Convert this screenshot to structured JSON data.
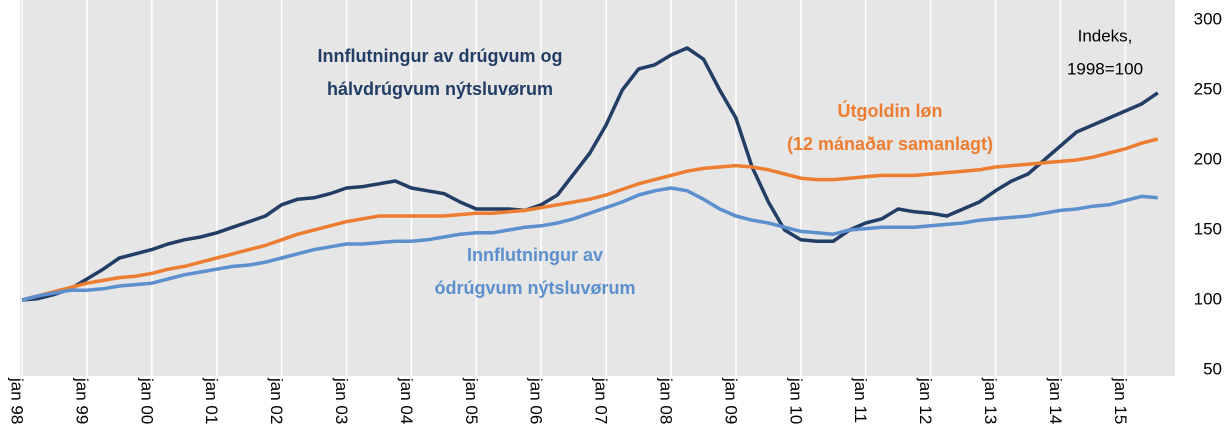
{
  "chart_data": {
    "type": "line",
    "x": [
      1998,
      1998.25,
      1998.5,
      1998.75,
      1999,
      1999.25,
      1999.5,
      1999.75,
      2000,
      2000.25,
      2000.5,
      2000.75,
      2001,
      2001.25,
      2001.5,
      2001.75,
      2002,
      2002.25,
      2002.5,
      2002.75,
      2003,
      2003.25,
      2003.5,
      2003.75,
      2004,
      2004.25,
      2004.5,
      2004.75,
      2005,
      2005.25,
      2005.5,
      2005.75,
      2006,
      2006.25,
      2006.5,
      2006.75,
      2007,
      2007.25,
      2007.5,
      2007.75,
      2008,
      2008.25,
      2008.5,
      2008.75,
      2009,
      2009.25,
      2009.5,
      2009.75,
      2010,
      2010.25,
      2010.5,
      2010.75,
      2011,
      2011.25,
      2011.5,
      2011.75,
      2012,
      2012.25,
      2012.5,
      2012.75,
      2013,
      2013.25,
      2013.5,
      2013.75,
      2014,
      2014.25,
      2014.5,
      2014.75,
      2015,
      2015.25,
      2015.5
    ],
    "series": [
      {
        "name": "Innflutningur av drúgvum og hálvdrúgvum nýtsluvørum",
        "color": "#223d66",
        "values": [
          100,
          101,
          104,
          108,
          115,
          122,
          130,
          133,
          136,
          140,
          143,
          145,
          148,
          152,
          156,
          160,
          168,
          172,
          173,
          176,
          180,
          181,
          183,
          185,
          180,
          178,
          176,
          170,
          165,
          165,
          165,
          164,
          168,
          175,
          190,
          205,
          225,
          250,
          265,
          268,
          275,
          280,
          272,
          250,
          230,
          195,
          170,
          150,
          143,
          142,
          142,
          150,
          155,
          158,
          165,
          163,
          162,
          160,
          165,
          170,
          178,
          185,
          190,
          200,
          210,
          220,
          225,
          230,
          235,
          240,
          248
        ]
      },
      {
        "name": "Útgoldin løn (12 mánaðar samanlagt)",
        "color": "#ed7d31",
        "values": [
          100,
          103,
          106,
          109,
          112,
          114,
          116,
          117,
          119,
          122,
          124,
          127,
          130,
          133,
          136,
          139,
          143,
          147,
          150,
          153,
          156,
          158,
          160,
          160,
          160,
          160,
          160,
          161,
          162,
          162,
          163,
          164,
          166,
          168,
          170,
          172,
          175,
          179,
          183,
          186,
          189,
          192,
          194,
          195,
          196,
          195,
          193,
          190,
          187,
          186,
          186,
          187,
          188,
          189,
          189,
          189,
          190,
          191,
          192,
          193,
          195,
          196,
          197,
          198,
          199,
          200,
          202,
          205,
          208,
          212,
          215
        ]
      },
      {
        "name": "Innflutningur av ódrúgvum nýtsluvørum",
        "color": "#5b8fce",
        "values": [
          100,
          103,
          105,
          107,
          107,
          108,
          110,
          111,
          112,
          115,
          118,
          120,
          122,
          124,
          125,
          127,
          130,
          133,
          136,
          138,
          140,
          140,
          141,
          142,
          142,
          143,
          145,
          147,
          148,
          148,
          150,
          152,
          153,
          155,
          158,
          162,
          166,
          170,
          175,
          178,
          180,
          178,
          172,
          165,
          160,
          157,
          155,
          152,
          149,
          148,
          147,
          150,
          151,
          152,
          152,
          152,
          153,
          154,
          155,
          157,
          158,
          159,
          160,
          162,
          164,
          165,
          167,
          168,
          171,
          174,
          173
        ]
      }
    ],
    "annotations": [
      {
        "lines": [
          "Innflutningur av drúgvum og",
          "hálvdrúgvum nýtsluvørum"
        ],
        "color": "#223d66"
      },
      {
        "lines": [
          "Útgoldin løn",
          "(12 mánaðar samanlagt)"
        ],
        "color": "#ed7d31"
      },
      {
        "lines": [
          "Innflutningur av",
          "ódrúgvum nýtsluvørum"
        ],
        "color": "#5b8fce"
      },
      {
        "lines": [
          "Indeks,",
          "1998=100"
        ],
        "color": "#000000"
      }
    ],
    "xlim": [
      1998,
      2015.54
    ],
    "xticks": [
      {
        "value": 1998,
        "label": "jan 98"
      },
      {
        "value": 1999,
        "label": "jan 99"
      },
      {
        "value": 2000,
        "label": "jan 00"
      },
      {
        "value": 2001,
        "label": "jan 01"
      },
      {
        "value": 2002,
        "label": "jan 02"
      },
      {
        "value": 2003,
        "label": "jan 03"
      },
      {
        "value": 2004,
        "label": "jan 04"
      },
      {
        "value": 2005,
        "label": "jan 05"
      },
      {
        "value": 2006,
        "label": "jan 06"
      },
      {
        "value": 2007,
        "label": "jan 07"
      },
      {
        "value": 2008,
        "label": "jan 08"
      },
      {
        "value": 2009,
        "label": "jan 09"
      },
      {
        "value": 2010,
        "label": "jan 10"
      },
      {
        "value": 2011,
        "label": "jan 11"
      },
      {
        "value": 2012,
        "label": "jan 12"
      },
      {
        "value": 2013,
        "label": "jan 13"
      },
      {
        "value": 2014,
        "label": "jan 14"
      },
      {
        "value": 2015,
        "label": "jan 15"
      }
    ],
    "ylim": [
      50,
      300
    ],
    "yticks": [
      50,
      100,
      150,
      200,
      250,
      300
    ],
    "grid": true
  }
}
